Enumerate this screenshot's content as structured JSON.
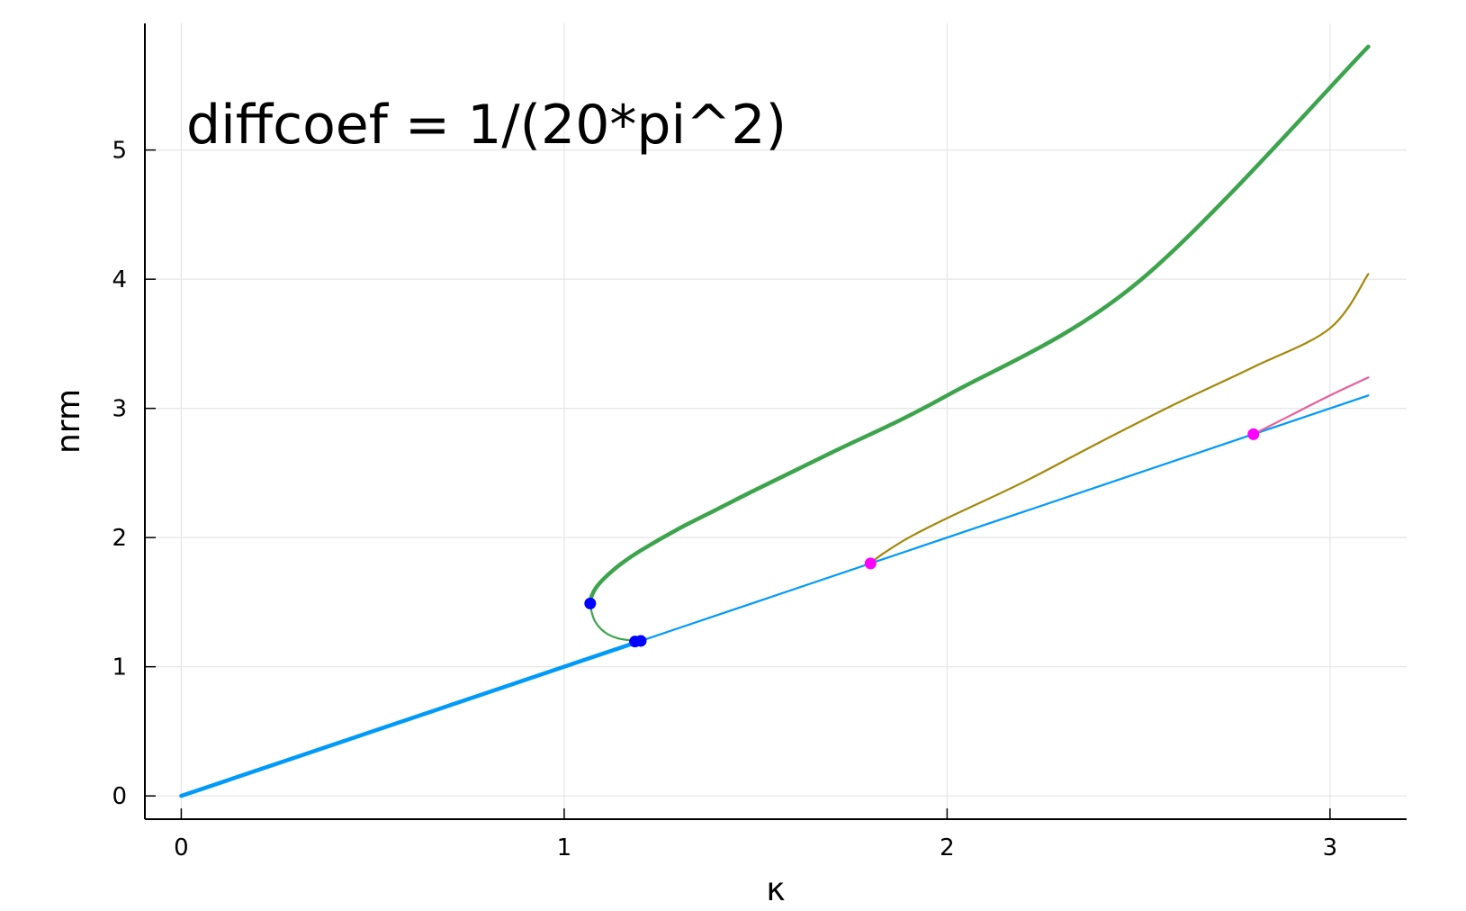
{
  "chart_data": {
    "type": "line",
    "title": "",
    "xlabel": "κ",
    "ylabel": "nrm",
    "xlim": [
      -0.095,
      3.2
    ],
    "ylim": [
      -0.18,
      5.98
    ],
    "xticks": [
      0,
      1,
      2,
      3
    ],
    "yticks": [
      0,
      1,
      2,
      3,
      4,
      5
    ],
    "xtick_labels": [
      "0",
      "1",
      "2",
      "3"
    ],
    "ytick_labels": [
      "0",
      "1",
      "2",
      "3",
      "4",
      "5"
    ],
    "grid": true,
    "legend": "none",
    "annotation": "diffcoef = 1/(20*pi^2)",
    "series": [
      {
        "color": "#009af9",
        "width": 4.5,
        "points": [
          [
            0,
            0
          ],
          [
            0.5,
            0.5
          ],
          [
            1.0,
            1.0
          ],
          [
            1.19,
            1.19
          ]
        ]
      },
      {
        "color": "#009af9",
        "width": 2.2,
        "points": [
          [
            1.19,
            1.19
          ],
          [
            1.5,
            1.5
          ],
          [
            1.8,
            1.8
          ],
          [
            2.2,
            2.2
          ],
          [
            2.8,
            2.8
          ],
          [
            3.1,
            3.1
          ]
        ]
      },
      {
        "color": "#3da44d",
        "width": 2.2,
        "points": [
          [
            1.19,
            1.2
          ],
          [
            1.17,
            1.205
          ],
          [
            1.14,
            1.22
          ],
          [
            1.115,
            1.25
          ],
          [
            1.095,
            1.295
          ],
          [
            1.08,
            1.355
          ],
          [
            1.072,
            1.42
          ],
          [
            1.068,
            1.49
          ]
        ]
      },
      {
        "color": "#3da44d",
        "width": 4.5,
        "points": [
          [
            1.068,
            1.49
          ],
          [
            1.072,
            1.55
          ],
          [
            1.085,
            1.62
          ],
          [
            1.11,
            1.7
          ],
          [
            1.15,
            1.8
          ],
          [
            1.2,
            1.9
          ],
          [
            1.3,
            2.07
          ],
          [
            1.4,
            2.22
          ],
          [
            1.5,
            2.37
          ],
          [
            1.7,
            2.66
          ],
          [
            2.0,
            3.1
          ],
          [
            2.5,
            3.98
          ],
          [
            3.1,
            5.8
          ]
        ]
      },
      {
        "color": "#a5870b",
        "width": 2.2,
        "points": [
          [
            1.8,
            1.8
          ],
          [
            1.83,
            1.87
          ],
          [
            1.9,
            2.0
          ],
          [
            2.0,
            2.15
          ],
          [
            2.2,
            2.43
          ],
          [
            2.4,
            2.74
          ],
          [
            2.6,
            3.04
          ],
          [
            2.8,
            3.32
          ],
          [
            3.0,
            3.62
          ],
          [
            3.1,
            4.04
          ]
        ]
      },
      {
        "color": "#e6609c",
        "width": 2.2,
        "points": [
          [
            2.8,
            2.8
          ],
          [
            2.9,
            2.95
          ],
          [
            3.0,
            3.1
          ],
          [
            3.1,
            3.24
          ]
        ]
      }
    ],
    "markers": [
      {
        "x": 1.068,
        "y": 1.49,
        "color": "#0000ff"
      },
      {
        "x": 1.185,
        "y": 1.195,
        "color": "#0000ff"
      },
      {
        "x": 1.2,
        "y": 1.2,
        "color": "#0000ff"
      },
      {
        "x": 1.8,
        "y": 1.8,
        "color": "#ff00ff"
      },
      {
        "x": 2.8,
        "y": 2.8,
        "color": "#ff00ff"
      }
    ]
  }
}
